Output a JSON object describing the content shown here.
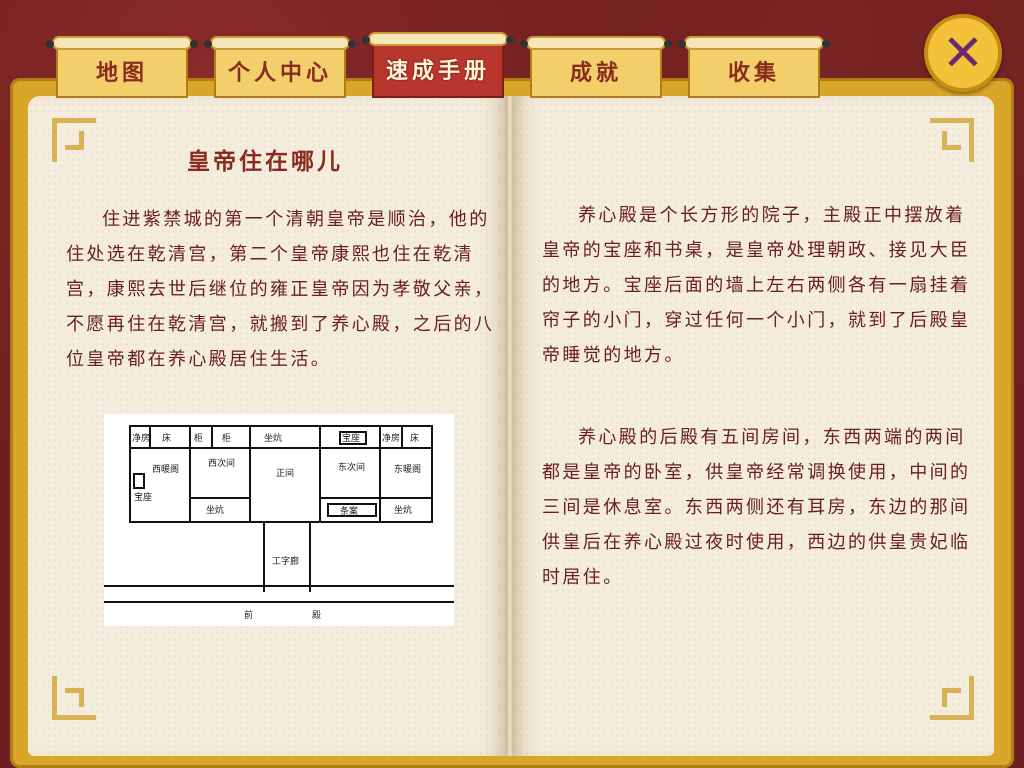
{
  "tabs": [
    {
      "label": "地图",
      "active": false
    },
    {
      "label": "个人中心",
      "active": false
    },
    {
      "label": "速成手册",
      "active": true
    },
    {
      "label": "成就",
      "active": false
    },
    {
      "label": "收集",
      "active": false
    }
  ],
  "close_button": {
    "icon": "close-icon"
  },
  "left_page": {
    "title": "皇帝住在哪儿",
    "paragraph": "住进紫禁城的第一个清朝皇帝是顺治，他的住处选在乾清宫，第二个皇帝康熙也住在乾清宫，康熙去世后继位的雍正皇帝因为孝敬父亲，不愿再住在乾清宫，就搬到了养心殿，之后的八位皇帝都在养心殿居住生活。"
  },
  "floorplan": {
    "labels": {
      "jingfang_w": "净房",
      "kang_w": "床",
      "gui1": "柜",
      "gui2": "柜",
      "zuokang_top": "坐炕",
      "baozuo_top": "宝座",
      "jingfang_e": "净房",
      "kang_e": "床",
      "xinuanjian": "西暖阁",
      "baozuo": "宝座",
      "xicijian": "西次间",
      "zhengjian": "正间",
      "dongcijian": "东次间",
      "dongnuanjian": "东暖阁",
      "zuokang_w": "坐炕",
      "zhuoan": "条案",
      "zuokang_e": "坐炕",
      "gongzilang": "工字廊",
      "qian": "前",
      "dian": "殿"
    }
  },
  "right_page": {
    "paragraph1": "养心殿是个长方形的院子，主殿正中摆放着皇帝的宝座和书桌，是皇帝处理朝政、接见大臣的地方。宝座后面的墙上左右两侧各有一扇挂着帘子的小门，穿过任何一个小门，就到了后殿皇帝睡觉的地方。",
    "paragraph2": "养心殿的后殿有五间房间，东西两端的两间都是皇帝的卧室，供皇帝经常调换使用，中间的三间是休息室。东西两侧还有耳房，东边的那间供皇后在养心殿过夜时使用，西边的供皇贵妃临时居住。"
  },
  "colors": {
    "tab_active": "#b8362d",
    "tab": "#f2cf6a",
    "text": "#6a2020",
    "title": "#8a2b22",
    "book": "#d8a628",
    "background": "#6e1f1f"
  }
}
